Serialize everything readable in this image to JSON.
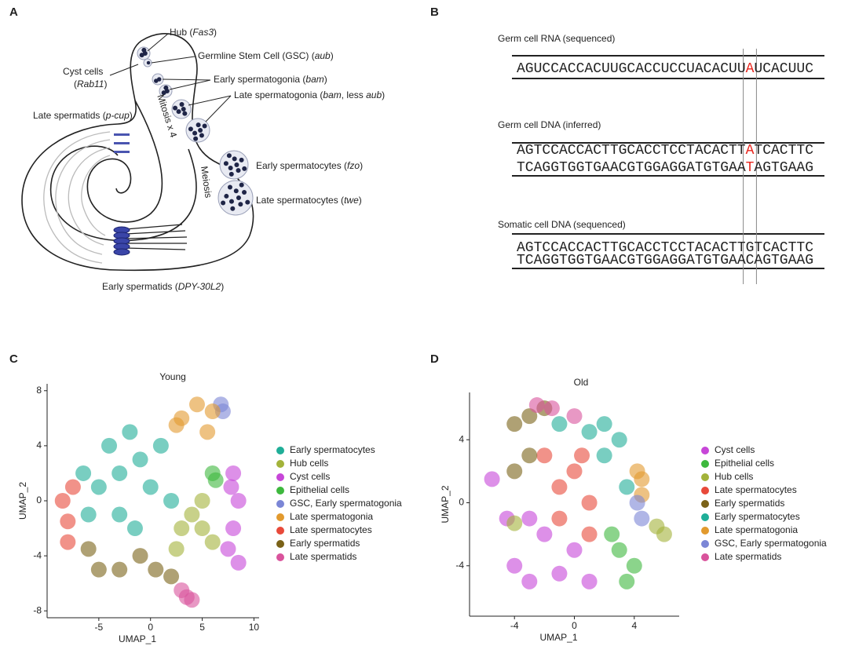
{
  "panel_labels": [
    "A",
    "B",
    "C",
    "D"
  ],
  "diagram": {
    "labels": [
      [
        "Hub (",
        "Fas3",
        ")"
      ],
      [
        "Germline Stem Cell (GSC) (",
        "aub",
        ")"
      ],
      [
        "Cyst cells"
      ],
      [
        "(",
        "Rab11",
        ")"
      ],
      [
        "Early spermatogonia (",
        "bam",
        ")"
      ],
      [
        "Late spermatogonia (",
        "bam",
        ", less ",
        "aub",
        ")"
      ],
      [
        "Late spermatids (",
        "p-cup",
        ")"
      ],
      [
        "Early spermatocytes (",
        "fzo",
        ")"
      ],
      [
        "Late spermatocytes (",
        "twe",
        ")"
      ],
      [
        "Early spermatids (",
        "DPY-30L2",
        ")"
      ]
    ],
    "mitosis": "Mitosis x 4",
    "meiosis": "Meiosis"
  },
  "sequences": {
    "highlight_color": "#e8241c",
    "blocks": [
      {
        "title": "Germ cell RNA (sequenced)",
        "highlight": true,
        "strands": [
          [
            "AGUCCACCACUUGCACCUCCUACACUU",
            "A",
            "UCACUUC"
          ]
        ]
      },
      {
        "title": "Germ cell DNA (inferred)",
        "highlight": true,
        "strands": [
          [
            "AGTCCACCACTTGCACCTCCTACACTT",
            "A",
            "TCACTTC"
          ],
          [
            "TCAGGTGGTGAACGTGGAGGATGTGAA",
            "T",
            "AGTGAAG"
          ]
        ]
      },
      {
        "title": "Somatic cell DNA (sequenced)",
        "highlight": false,
        "strands": [
          [
            "AGTCCACCACTTGCACCTCCTACACTT",
            "G",
            "TCACTTC"
          ],
          [
            "TCAGGTGGTGAACGTGGAGGATGTGAA",
            "C",
            "AGTGAAG"
          ]
        ]
      }
    ]
  },
  "chart_data": [
    {
      "type": "scatter",
      "title": "Young",
      "xlabel": "UMAP_1",
      "ylabel": "UMAP_2",
      "xlim": [
        -10,
        10.5
      ],
      "xticks": [
        -5,
        0,
        5,
        10
      ],
      "ylim": [
        -8.5,
        8.5
      ],
      "yticks": [
        -8,
        -4,
        0,
        4,
        8
      ],
      "legend": "right",
      "series": [
        {
          "name": "Early spermatocytes",
          "color": "#1fae98",
          "x": [
            -5,
            -3,
            -1,
            1,
            -6,
            -3,
            0,
            2,
            -2,
            -4,
            -6.5,
            -1.5
          ],
          "y": [
            1,
            2,
            3,
            4,
            -1,
            -1,
            1,
            0,
            5,
            4,
            2,
            -2
          ]
        },
        {
          "name": "Hub cells",
          "color": "#a3b33a",
          "x": [
            4,
            5,
            6,
            3,
            5,
            2.5
          ],
          "y": [
            -1,
            -2,
            -3,
            -2,
            0,
            -3.5
          ]
        },
        {
          "name": "Cyst cells",
          "color": "#c746d8",
          "x": [
            8,
            8.5,
            8,
            7.5,
            8.5,
            7.8
          ],
          "y": [
            2,
            0,
            -2,
            -3.5,
            -4.5,
            1
          ]
        },
        {
          "name": "Epithelial cells",
          "color": "#3db83d",
          "x": [
            6,
            6.3
          ],
          "y": [
            2,
            1.5
          ]
        },
        {
          "name": "GSC, Early spermatogonia",
          "color": "#7b86d6",
          "x": [
            7,
            6.8
          ],
          "y": [
            6.5,
            7
          ]
        },
        {
          "name": "Late spermatogonia",
          "color": "#e29a2e",
          "x": [
            3,
            4.5,
            6,
            5.5,
            2.5
          ],
          "y": [
            6,
            7,
            6.5,
            5,
            5.5
          ]
        },
        {
          "name": "Late spermatocytes",
          "color": "#e8493a",
          "x": [
            -8.5,
            -8,
            -7.5,
            -8
          ],
          "y": [
            0,
            -1.5,
            1,
            -3
          ]
        },
        {
          "name": "Early spermatids",
          "color": "#7a6218",
          "x": [
            -5,
            -3,
            -6,
            -1,
            0.5,
            2
          ],
          "y": [
            -5,
            -5,
            -3.5,
            -4,
            -5,
            -5.5
          ]
        },
        {
          "name": "Late spermatids",
          "color": "#d9539c",
          "x": [
            3.5,
            4,
            3
          ],
          "y": [
            -7,
            -7.2,
            -6.5
          ]
        }
      ]
    },
    {
      "type": "scatter",
      "title": "Old",
      "xlabel": "UMAP_1",
      "ylabel": "UMAP_2",
      "xlim": [
        -7,
        7
      ],
      "xticks": [
        -4,
        0,
        4
      ],
      "ylim": [
        -7.2,
        7
      ],
      "yticks": [
        -4,
        0,
        4
      ],
      "legend": "right",
      "series": [
        {
          "name": "Cyst cells",
          "color": "#c746d8",
          "x": [
            -4,
            -3,
            -2,
            -1,
            0,
            1,
            -4.5,
            -5.5,
            -3
          ],
          "y": [
            -4,
            -5,
            -2,
            -4.5,
            -3,
            -5,
            -1,
            1.5,
            -1
          ]
        },
        {
          "name": "Epithelial cells",
          "color": "#3db83d",
          "x": [
            3,
            4,
            3.5,
            2.5
          ],
          "y": [
            -3,
            -4,
            -5,
            -2
          ]
        },
        {
          "name": "Hub cells",
          "color": "#a3b33a",
          "x": [
            5.5,
            6,
            -4
          ],
          "y": [
            -1.5,
            -2,
            -1.3
          ]
        },
        {
          "name": "Late spermatocytes",
          "color": "#e8493a",
          "x": [
            -1,
            0,
            1,
            -1,
            0.5,
            -2,
            1
          ],
          "y": [
            1,
            2,
            0,
            -1,
            3,
            3,
            -2
          ]
        },
        {
          "name": "Early spermatids",
          "color": "#7a6218",
          "x": [
            -4,
            -3,
            -3,
            -2,
            -4
          ],
          "y": [
            5,
            3,
            5.5,
            6,
            2
          ]
        },
        {
          "name": "Early spermatocytes",
          "color": "#1fae98",
          "x": [
            2,
            3,
            2,
            3.5,
            1,
            -1
          ],
          "y": [
            3,
            4,
            5,
            1,
            4.5,
            5
          ]
        },
        {
          "name": "Late spermatogonia",
          "color": "#e29a2e",
          "x": [
            4.5,
            4.5,
            4.2
          ],
          "y": [
            0.5,
            1.5,
            2
          ]
        },
        {
          "name": "GSC, Early spermatogonia",
          "color": "#7b86d6",
          "x": [
            4.5,
            4.2
          ],
          "y": [
            -1,
            0
          ]
        },
        {
          "name": "Late spermatids",
          "color": "#d9539c",
          "x": [
            -1.5,
            -2.5,
            0
          ],
          "y": [
            6,
            6.2,
            5.5
          ]
        }
      ]
    }
  ]
}
